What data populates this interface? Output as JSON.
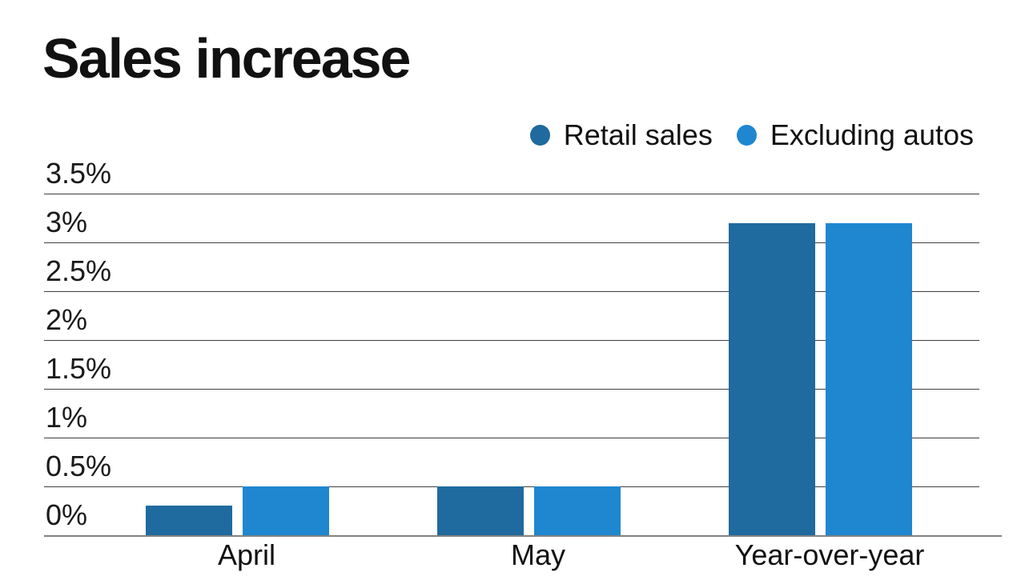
{
  "title": "Sales increase",
  "legend": {
    "items": [
      {
        "label": "Retail sales",
        "color": "#1f6a9e",
        "icon": "legend-dot-icon"
      },
      {
        "label": "Excluding autos",
        "color": "#1e87d0",
        "icon": "legend-dot-icon"
      }
    ]
  },
  "chart_data": {
    "type": "bar",
    "title": "Sales increase",
    "categories": [
      "April",
      "May",
      "Year-over-year"
    ],
    "series": [
      {
        "name": "Retail sales",
        "color": "#1f6a9e",
        "values": [
          0.3,
          0.5,
          3.2
        ]
      },
      {
        "name": "Excluding autos",
        "color": "#1e87d0",
        "values": [
          0.5,
          0.5,
          3.2
        ]
      }
    ],
    "ylabel": "",
    "xlabel": "",
    "ylim": [
      0,
      3.5
    ],
    "ytick_values": [
      0,
      0.5,
      1,
      1.5,
      2,
      2.5,
      3,
      3.5
    ],
    "ytick_labels": [
      "0%",
      "0.5%",
      "1%",
      "1.5%",
      "2%",
      "2.5%",
      "3%",
      "3.5%"
    ],
    "grid": true,
    "legend_position": "top-right",
    "unit": "percent"
  }
}
